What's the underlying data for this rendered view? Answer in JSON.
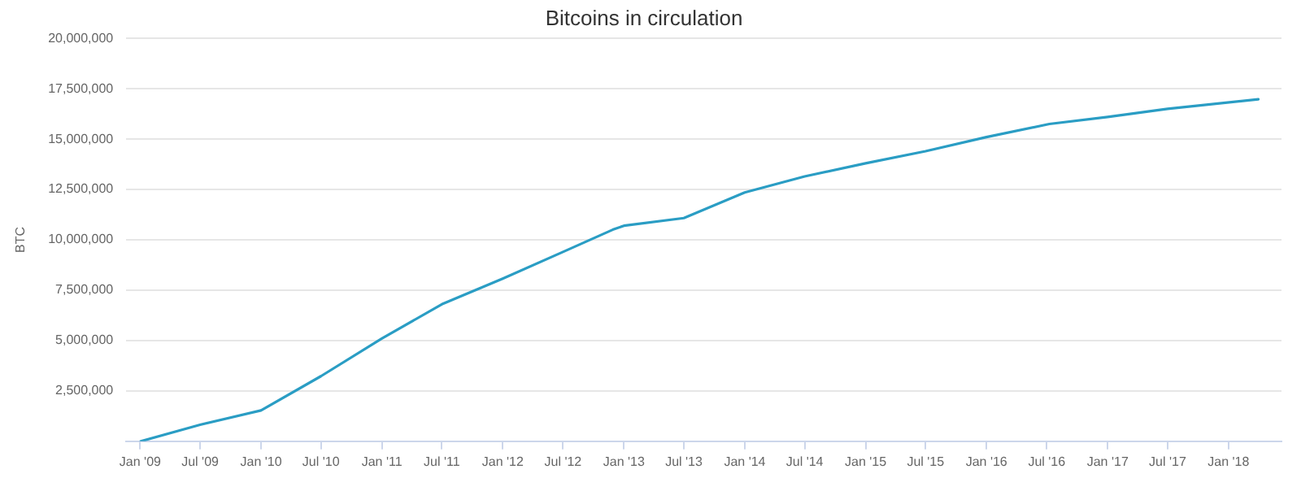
{
  "chart_data": {
    "type": "line",
    "title": "Bitcoins in circulation",
    "ylabel": "BTC",
    "x": [
      "2009-01-03",
      "2009-07",
      "2010-01",
      "2010-07",
      "2011-01",
      "2011-07",
      "2012-01",
      "2012-07",
      "2012-11-28",
      "2013-01",
      "2013-07",
      "2014-01",
      "2014-07",
      "2015-01",
      "2015-07",
      "2016-01",
      "2016-07-09",
      "2017-01",
      "2017-07",
      "2018-04"
    ],
    "series": [
      {
        "color": "#2a9dc4",
        "values": [
          0,
          820000,
          1530000,
          3230000,
          5100000,
          6800000,
          8070000,
          9400000,
          10500000,
          10700000,
          11080000,
          12350000,
          13150000,
          13800000,
          14400000,
          15100000,
          15750000,
          16100000,
          16500000,
          16980000
        ]
      }
    ],
    "xlim": [
      "2008-11-20",
      "2018-06-10"
    ],
    "xticks": [
      {
        "value": "2009-01",
        "label": "Jan '09"
      },
      {
        "value": "2009-07",
        "label": "Jul '09"
      },
      {
        "value": "2010-01",
        "label": "Jan '10"
      },
      {
        "value": "2010-07",
        "label": "Jul '10"
      },
      {
        "value": "2011-01",
        "label": "Jan '11"
      },
      {
        "value": "2011-07",
        "label": "Jul '11"
      },
      {
        "value": "2012-01",
        "label": "Jan '12"
      },
      {
        "value": "2012-07",
        "label": "Jul '12"
      },
      {
        "value": "2013-01",
        "label": "Jan '13"
      },
      {
        "value": "2013-07",
        "label": "Jul '13"
      },
      {
        "value": "2014-01",
        "label": "Jan '14"
      },
      {
        "value": "2014-07",
        "label": "Jul '14"
      },
      {
        "value": "2015-01",
        "label": "Jan '15"
      },
      {
        "value": "2015-07",
        "label": "Jul '15"
      },
      {
        "value": "2016-01",
        "label": "Jan '16"
      },
      {
        "value": "2016-07",
        "label": "Jul '16"
      },
      {
        "value": "2017-01",
        "label": "Jan '17"
      },
      {
        "value": "2017-07",
        "label": "Jul '17"
      },
      {
        "value": "2018-01",
        "label": "Jan '18"
      }
    ],
    "ylim": [
      0,
      20000000
    ],
    "yticks": [
      {
        "value": 0,
        "label": null
      },
      {
        "value": 2500000,
        "label": "2,500,000"
      },
      {
        "value": 5000000,
        "label": "5,000,000"
      },
      {
        "value": 7500000,
        "label": "7,500,000"
      },
      {
        "value": 10000000,
        "label": "10,000,000"
      },
      {
        "value": 12500000,
        "label": "12,500,000"
      },
      {
        "value": 15000000,
        "label": "15,000,000"
      },
      {
        "value": 17500000,
        "label": "17,500,000"
      },
      {
        "value": 20000000,
        "label": "20,000,000"
      }
    ],
    "grid": "y",
    "legend": false,
    "marker": "none",
    "line_style": "solid"
  }
}
